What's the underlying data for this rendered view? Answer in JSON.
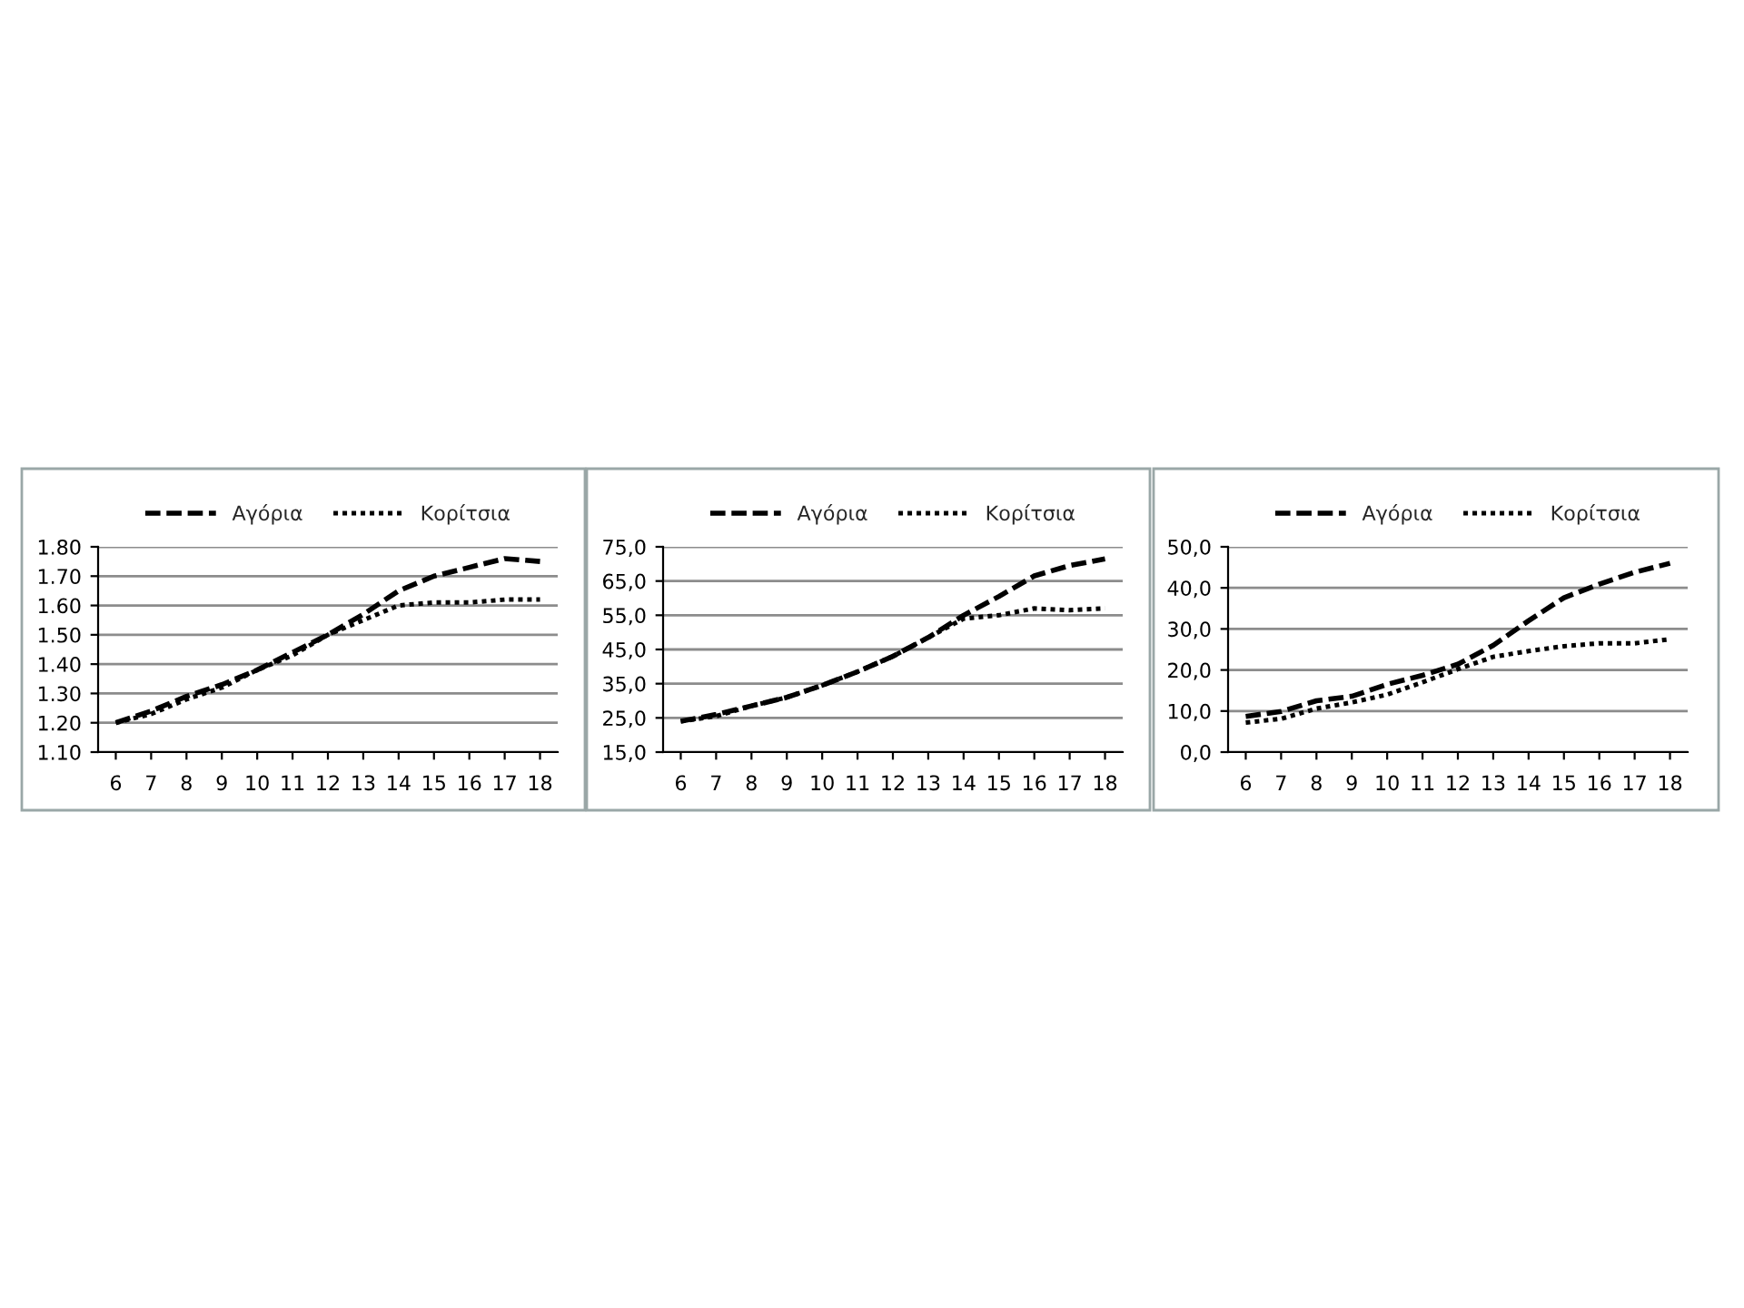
{
  "chart_data": [
    {
      "type": "line",
      "categories": [
        "6",
        "7",
        "8",
        "9",
        "10",
        "11",
        "12",
        "13",
        "14",
        "15",
        "16",
        "17",
        "18"
      ],
      "legend": "top",
      "grid": "y",
      "marker": "none",
      "ylim": [
        1.1,
        1.8
      ],
      "yticks": [
        {
          "value": 1.1,
          "label": "1.10"
        },
        {
          "value": 1.2,
          "label": "1.20"
        },
        {
          "value": 1.3,
          "label": "1.30"
        },
        {
          "value": 1.4,
          "label": "1.40"
        },
        {
          "value": 1.5,
          "label": "1.50"
        },
        {
          "value": 1.6,
          "label": "1.60"
        },
        {
          "value": 1.7,
          "label": "1.70"
        },
        {
          "value": 1.8,
          "label": "1.80"
        }
      ],
      "series": [
        {
          "name": "Αγόρια",
          "color": "#000000",
          "line_style": "dashed",
          "values": [
            1.2,
            1.24,
            1.29,
            1.33,
            1.38,
            1.44,
            1.5,
            1.57,
            1.65,
            1.7,
            1.73,
            1.76,
            1.75
          ]
        },
        {
          "name": "Κορίτσια",
          "color": "#000000",
          "line_style": "dotted",
          "values": [
            1.2,
            1.23,
            1.28,
            1.32,
            1.38,
            1.43,
            1.5,
            1.55,
            1.6,
            1.61,
            1.61,
            1.62,
            1.62
          ]
        }
      ]
    },
    {
      "type": "line",
      "categories": [
        "6",
        "7",
        "8",
        "9",
        "10",
        "11",
        "12",
        "13",
        "14",
        "15",
        "16",
        "17",
        "18"
      ],
      "legend": "top",
      "grid": "y",
      "marker": "none",
      "ylim": [
        15,
        75
      ],
      "yticks": [
        {
          "value": 15,
          "label": "15,0"
        },
        {
          "value": 25,
          "label": "25,0"
        },
        {
          "value": 35,
          "label": "35,0"
        },
        {
          "value": 45,
          "label": "45,0"
        },
        {
          "value": 55,
          "label": "55,0"
        },
        {
          "value": 65,
          "label": "65,0"
        },
        {
          "value": 75,
          "label": "75,0"
        }
      ],
      "series": [
        {
          "name": "Αγόρια",
          "color": "#000000",
          "line_style": "dashed",
          "values": [
            24.0,
            26.0,
            28.5,
            31.0,
            34.5,
            38.5,
            43.0,
            48.5,
            55.0,
            60.5,
            66.5,
            69.5,
            71.5
          ]
        },
        {
          "name": "Κορίτσια",
          "color": "#000000",
          "line_style": "dotted",
          "values": [
            24.0,
            25.5,
            28.5,
            31.0,
            34.5,
            38.5,
            43.0,
            48.5,
            54.0,
            55.0,
            57.0,
            56.5,
            57.0
          ]
        }
      ]
    },
    {
      "type": "line",
      "categories": [
        "6",
        "7",
        "8",
        "9",
        "10",
        "11",
        "12",
        "13",
        "14",
        "15",
        "16",
        "17",
        "18"
      ],
      "legend": "top",
      "grid": "y",
      "marker": "none",
      "ylim": [
        0,
        50
      ],
      "yticks": [
        {
          "value": 0,
          "label": "0,0"
        },
        {
          "value": 10,
          "label": "10,0"
        },
        {
          "value": 20,
          "label": "20,0"
        },
        {
          "value": 30,
          "label": "30,0"
        },
        {
          "value": 40,
          "label": "40,0"
        },
        {
          "value": 50,
          "label": "50,0"
        }
      ],
      "series": [
        {
          "name": "Αγόρια",
          "color": "#000000",
          "line_style": "dashed",
          "values": [
            8.7,
            9.9,
            12.5,
            13.6,
            16.5,
            18.7,
            21.4,
            26.0,
            32.0,
            37.6,
            40.9,
            43.8,
            46.0
          ]
        },
        {
          "name": "Κορίτσια",
          "color": "#000000",
          "line_style": "dotted",
          "values": [
            7.2,
            8.1,
            10.6,
            12.1,
            14.0,
            17.0,
            20.2,
            23.2,
            24.6,
            25.8,
            26.5,
            26.5,
            27.5
          ]
        }
      ]
    }
  ]
}
